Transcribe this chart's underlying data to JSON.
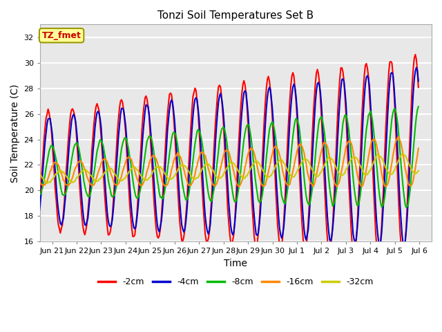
{
  "title": "Tonzi Soil Temperatures Set B",
  "xlabel": "Time",
  "ylabel": "Soil Temperature (C)",
  "ylim": [
    16,
    33
  ],
  "yticks": [
    16,
    18,
    20,
    22,
    24,
    26,
    28,
    30,
    32
  ],
  "series_labels": [
    "-2cm",
    "-4cm",
    "-8cm",
    "-16cm",
    "-32cm"
  ],
  "series_colors": [
    "#ff0000",
    "#0000cc",
    "#00bb00",
    "#ff8800",
    "#cccc00"
  ],
  "series_linewidths": [
    1.5,
    1.5,
    1.5,
    1.5,
    1.5
  ],
  "annotation_text": "TZ_fmet",
  "annotation_color": "#cc0000",
  "annotation_bg": "#ffff99",
  "annotation_border": "#999900",
  "background_color": "#e8e8e8",
  "grid_color": "#ffffff",
  "tick_labels": [
    "Jun 21",
    "Jun 22",
    "Jun 23",
    "Jun 24",
    "Jun 25",
    "Jun 26",
    "Jun 27",
    "Jun 28",
    "Jun 29",
    "Jun 30",
    "Jul 1",
    "Jul 2",
    "Jul 3",
    "Jul 4",
    "Jul 5",
    "Jul 6"
  ],
  "base_temp": 21.5,
  "trend_slope": 0.07
}
